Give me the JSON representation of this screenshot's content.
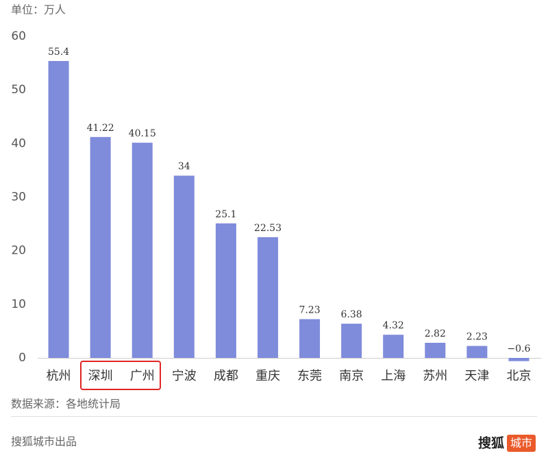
{
  "chart_data": {
    "type": "bar",
    "y_label": "单位：万人",
    "categories": [
      "杭州",
      "深圳",
      "广州",
      "宁波",
      "成都",
      "重庆",
      "东莞",
      "南京",
      "上海",
      "苏州",
      "天津",
      "北京"
    ],
    "values": [
      55.4,
      41.22,
      40.15,
      34,
      25.1,
      22.53,
      7.23,
      6.38,
      4.32,
      2.82,
      2.23,
      -0.6
    ],
    "value_labels": [
      "55.4",
      "41.22",
      "40.15",
      "34",
      "25.1",
      "22.53",
      "7.23",
      "6.38",
      "4.32",
      "2.82",
      "2.23",
      "−0.6"
    ],
    "color": "#7f8bdb",
    "ylim": [
      0,
      60
    ],
    "yticks": [
      0,
      10,
      20,
      30,
      40,
      50,
      60
    ],
    "grid": false,
    "source": "数据来源：各地统计局"
  },
  "footer": {
    "credit": "搜狐城市出品",
    "brand": "搜狐",
    "brand_tag": "城市"
  }
}
